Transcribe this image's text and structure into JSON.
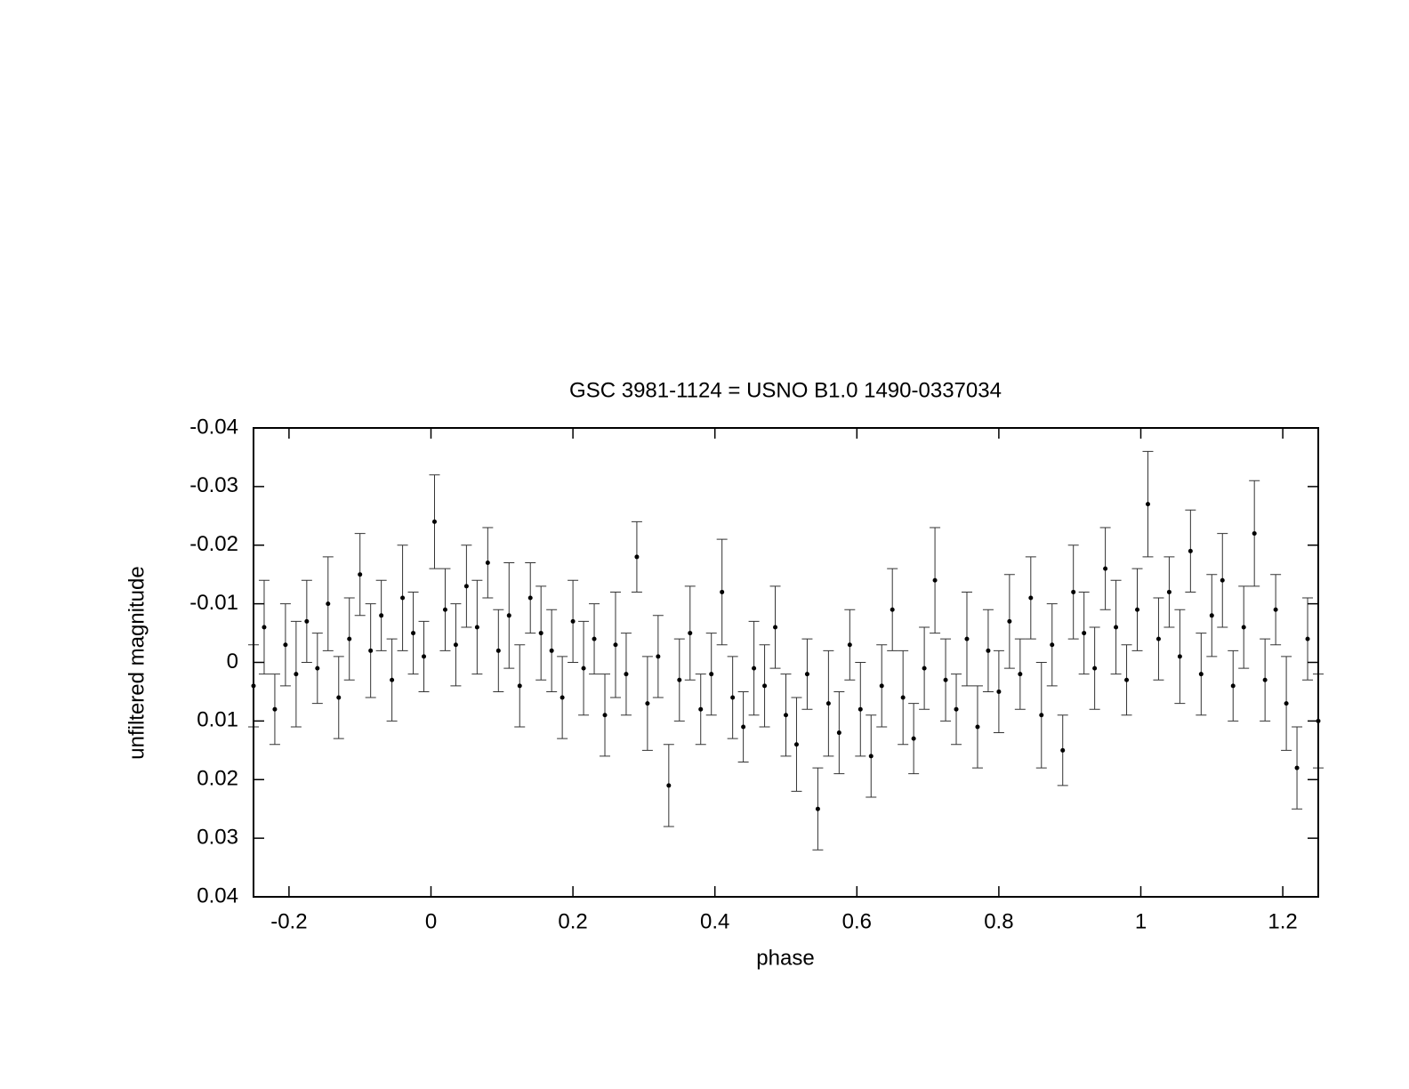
{
  "chart_data": {
    "type": "errorbar",
    "title": "GSC 3981-1124 = USNO B1.0 1490-0337034",
    "x_label": "phase",
    "y_label": "unfiltered magnitude",
    "xlim": [
      -0.25,
      1.25
    ],
    "xticks": [
      -0.2,
      0,
      0.2,
      0.4,
      0.6,
      0.8,
      1,
      1.2
    ],
    "ylim": [
      0.04,
      -0.04
    ],
    "yticks": [
      -0.04,
      -0.03,
      -0.02,
      -0.01,
      0,
      0.01,
      0.02,
      0.03,
      0.04
    ],
    "color": "#000000",
    "x": [
      -0.25,
      -0.235,
      -0.22,
      -0.205,
      -0.19,
      -0.175,
      -0.16,
      -0.145,
      -0.13,
      -0.115,
      -0.1,
      -0.085,
      -0.07,
      -0.055,
      -0.04,
      -0.025,
      -0.01,
      0.005,
      0.02,
      0.035,
      0.05,
      0.065,
      0.08,
      0.095,
      0.11,
      0.125,
      0.14,
      0.155,
      0.17,
      0.185,
      0.2,
      0.215,
      0.23,
      0.245,
      0.26,
      0.275,
      0.29,
      0.305,
      0.32,
      0.335,
      0.35,
      0.365,
      0.38,
      0.395,
      0.41,
      0.425,
      0.44,
      0.455,
      0.47,
      0.485,
      0.5,
      0.515,
      0.53,
      0.545,
      0.56,
      0.575,
      0.59,
      0.605,
      0.62,
      0.635,
      0.65,
      0.665,
      0.68,
      0.695,
      0.71,
      0.725,
      0.74,
      0.755,
      0.77,
      0.785,
      0.8,
      0.815,
      0.83,
      0.845,
      0.86,
      0.875,
      0.89,
      0.905,
      0.92,
      0.935,
      0.95,
      0.965,
      0.98,
      0.995,
      1.01,
      1.025,
      1.04,
      1.055,
      1.07,
      1.085,
      1.1,
      1.115,
      1.13,
      1.145,
      1.16,
      1.175,
      1.19,
      1.205,
      1.22,
      1.235,
      1.25
    ],
    "values": [
      0.004,
      -0.006,
      0.008,
      -0.003,
      0.002,
      -0.007,
      0.001,
      -0.01,
      0.006,
      -0.004,
      -0.015,
      -0.002,
      -0.008,
      0.003,
      -0.011,
      -0.005,
      -0.001,
      -0.024,
      -0.009,
      -0.003,
      -0.013,
      -0.006,
      -0.017,
      -0.002,
      -0.008,
      0.004,
      -0.011,
      -0.005,
      -0.002,
      0.006,
      -0.007,
      0.001,
      -0.004,
      0.009,
      -0.003,
      0.002,
      -0.018,
      0.007,
      -0.001,
      0.021,
      0.003,
      -0.005,
      0.008,
      0.002,
      -0.012,
      0.006,
      0.011,
      0.001,
      0.004,
      -0.006,
      0.009,
      0.014,
      0.002,
      0.025,
      0.007,
      0.012,
      -0.003,
      0.008,
      0.016,
      0.004,
      -0.009,
      0.006,
      0.013,
      0.001,
      -0.014,
      0.003,
      0.008,
      -0.004,
      0.011,
      -0.002,
      0.005,
      -0.007,
      0.002,
      -0.011,
      0.009,
      -0.003,
      0.015,
      -0.012,
      -0.005,
      0.001,
      -0.016,
      -0.006,
      0.003,
      -0.009,
      -0.027,
      -0.004,
      -0.012,
      -0.001,
      -0.019,
      0.002,
      -0.008,
      -0.014,
      0.004,
      -0.006,
      -0.022,
      0.003,
      -0.009,
      0.007,
      0.018,
      -0.004,
      0.01
    ],
    "errors": [
      0.007,
      0.008,
      0.006,
      0.007,
      0.009,
      0.007,
      0.006,
      0.008,
      0.007,
      0.007,
      0.007,
      0.008,
      0.006,
      0.007,
      0.009,
      0.007,
      0.006,
      0.008,
      0.007,
      0.007,
      0.007,
      0.008,
      0.006,
      0.007,
      0.009,
      0.007,
      0.006,
      0.008,
      0.007,
      0.007,
      0.007,
      0.008,
      0.006,
      0.007,
      0.009,
      0.007,
      0.006,
      0.008,
      0.007,
      0.007,
      0.007,
      0.008,
      0.006,
      0.007,
      0.009,
      0.007,
      0.006,
      0.008,
      0.007,
      0.007,
      0.007,
      0.008,
      0.006,
      0.007,
      0.009,
      0.007,
      0.006,
      0.008,
      0.007,
      0.007,
      0.007,
      0.008,
      0.006,
      0.007,
      0.009,
      0.007,
      0.006,
      0.008,
      0.007,
      0.007,
      0.007,
      0.008,
      0.006,
      0.007,
      0.009,
      0.007,
      0.006,
      0.008,
      0.007,
      0.007,
      0.007,
      0.008,
      0.006,
      0.007,
      0.009,
      0.007,
      0.006,
      0.008,
      0.007,
      0.007,
      0.007,
      0.008,
      0.006,
      0.007,
      0.009,
      0.007,
      0.006,
      0.008,
      0.007,
      0.007,
      0.008
    ]
  }
}
